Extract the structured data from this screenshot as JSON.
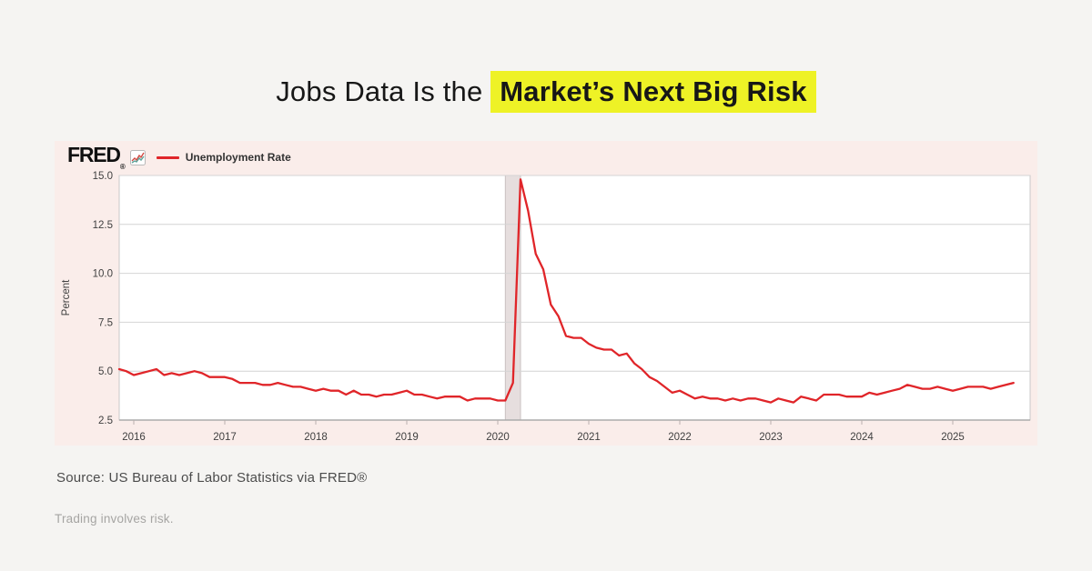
{
  "page": {
    "background": "#f5f4f2"
  },
  "title": {
    "prefix": "Jobs Data Is the ",
    "highlight": "Market’s Next Big Risk",
    "highlight_color": "#eef226"
  },
  "chart_card": {
    "background": "#faedea",
    "fred_logo": "FRED",
    "fred_logo_reg": "®",
    "legend_label": "Unemployment Rate"
  },
  "chart_data": {
    "type": "line",
    "title": "",
    "series": [
      {
        "name": "Unemployment Rate",
        "start_month": "2015-11",
        "frequency": "monthly",
        "values": [
          5.1,
          5.0,
          4.8,
          4.9,
          5.0,
          5.1,
          4.8,
          4.9,
          4.8,
          4.9,
          5.0,
          4.9,
          4.7,
          4.7,
          4.7,
          4.6,
          4.4,
          4.4,
          4.4,
          4.3,
          4.3,
          4.4,
          4.3,
          4.2,
          4.2,
          4.1,
          4.0,
          4.1,
          4.0,
          4.0,
          3.8,
          4.0,
          3.8,
          3.8,
          3.7,
          3.8,
          3.8,
          3.9,
          4.0,
          3.8,
          3.8,
          3.7,
          3.6,
          3.7,
          3.7,
          3.7,
          3.5,
          3.6,
          3.6,
          3.6,
          3.5,
          3.5,
          4.4,
          14.8,
          13.2,
          11.0,
          10.2,
          8.4,
          7.8,
          6.8,
          6.7,
          6.7,
          6.4,
          6.2,
          6.1,
          6.1,
          5.8,
          5.9,
          5.4,
          5.1,
          4.7,
          4.5,
          4.2,
          3.9,
          4.0,
          3.8,
          3.6,
          3.7,
          3.6,
          3.6,
          3.5,
          3.6,
          3.5,
          3.6,
          3.6,
          3.5,
          3.4,
          3.6,
          3.5,
          3.4,
          3.7,
          3.6,
          3.5,
          3.8,
          3.8,
          3.8,
          3.7,
          3.7,
          3.7,
          3.9,
          3.8,
          3.9,
          4.0,
          4.1,
          4.3,
          4.2,
          4.1,
          4.1,
          4.2,
          4.1,
          4.0,
          4.1,
          4.2,
          4.2,
          4.2,
          4.1,
          4.2,
          4.3,
          4.4
        ]
      }
    ],
    "ylabel": "Percent",
    "xlabel": "",
    "ylim": [
      2.5,
      15.0
    ],
    "yticks": [
      2.5,
      5.0,
      7.5,
      10.0,
      12.5,
      15.0
    ],
    "xticks": [
      2016,
      2017,
      2018,
      2019,
      2020,
      2021,
      2022,
      2023,
      2024,
      2025
    ],
    "x_range": [
      2015.84,
      2025.85
    ],
    "grid": "horizontal",
    "legend_position": "top-left",
    "recession_band": {
      "start": "2020-02",
      "end": "2020-04"
    },
    "colors": {
      "line": "#e02529",
      "plot_background": "#ffffff",
      "gridline": "#d4d4d4",
      "plot_border": "#c8c8c8",
      "axis_bottom": "#ababab",
      "recession_band": "#e6dede",
      "recession_band_edge": "#c9c1c1",
      "tick_label": "#404040"
    }
  },
  "footer": {
    "source": "Source: US Bureau of Labor Statistics via FRED®",
    "disclaimer": "Trading involves risk."
  }
}
